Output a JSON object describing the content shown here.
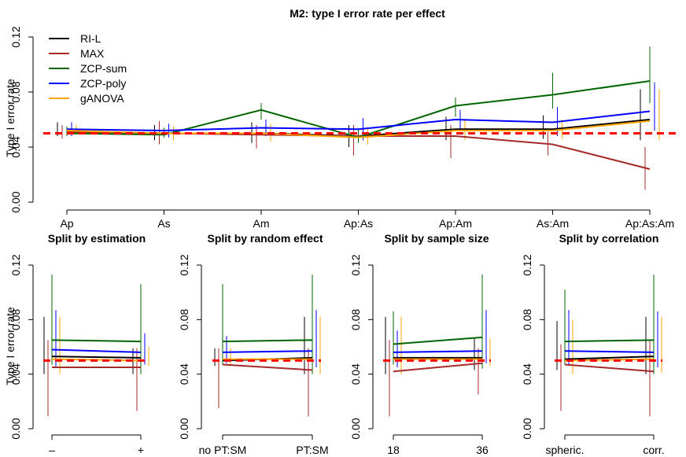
{
  "colors": {
    "RI-L": "#000000",
    "MAX": "#a52a2a",
    "ZCP-sum": "#006400",
    "ZCP-poly": "#0000ff",
    "gANOVA": "#ffa500",
    "reference": "#ff0000"
  },
  "reference_line": 0.05,
  "chart_data": [
    {
      "type": "line",
      "title": "M2: type I error rate per effect",
      "ylabel": "Type I error rate",
      "xlabel": "",
      "ylim": [
        0,
        0.12
      ],
      "yticks": [
        "0.00",
        "0.04",
        "0.08",
        "0.12"
      ],
      "categories": [
        "Ap",
        "As",
        "Am",
        "Ap:As",
        "Ap:Am",
        "As:Am",
        "Ap:As:Am"
      ],
      "legend": "top-left",
      "series": [
        {
          "name": "RI-L",
          "values": [
            0.051,
            0.05,
            0.05,
            0.048,
            0.053,
            0.053,
            0.06
          ],
          "low": [
            0.048,
            0.045,
            0.043,
            0.04,
            0.045,
            0.046,
            0.045
          ],
          "high": [
            0.058,
            0.056,
            0.058,
            0.056,
            0.062,
            0.063,
            0.082
          ]
        },
        {
          "name": "MAX",
          "values": [
            0.051,
            0.05,
            0.049,
            0.048,
            0.048,
            0.042,
            0.024
          ],
          "low": [
            0.046,
            0.042,
            0.039,
            0.034,
            0.032,
            0.034,
            0.009
          ],
          "high": [
            0.056,
            0.059,
            0.056,
            0.056,
            0.056,
            0.051,
            0.04
          ]
        },
        {
          "name": "ZCP-sum",
          "values": [
            0.05,
            0.049,
            0.067,
            0.047,
            0.07,
            0.078,
            0.088
          ],
          "low": [
            0.048,
            0.047,
            0.06,
            0.043,
            0.062,
            0.068,
            0.072
          ],
          "high": [
            0.055,
            0.054,
            0.072,
            0.053,
            0.076,
            0.094,
            0.113
          ]
        },
        {
          "name": "ZCP-poly",
          "values": [
            0.053,
            0.052,
            0.054,
            0.053,
            0.06,
            0.058,
            0.066
          ],
          "low": [
            0.048,
            0.047,
            0.048,
            0.045,
            0.052,
            0.048,
            0.052
          ],
          "high": [
            0.058,
            0.057,
            0.06,
            0.061,
            0.067,
            0.069,
            0.087
          ]
        },
        {
          "name": "gANOVA",
          "values": [
            0.052,
            0.05,
            0.05,
            0.047,
            0.052,
            0.052,
            0.059
          ],
          "low": [
            0.049,
            0.045,
            0.044,
            0.042,
            0.045,
            0.046,
            0.045
          ],
          "high": [
            0.056,
            0.055,
            0.057,
            0.053,
            0.06,
            0.06,
            0.082
          ]
        }
      ]
    },
    {
      "type": "line",
      "title": "Split by estimation",
      "ylabel": "Type I error rate",
      "ylim": [
        0,
        0.12
      ],
      "yticks": [
        "0.00",
        "0.04",
        "0.08",
        "0.12"
      ],
      "categories": [
        "–",
        "+"
      ],
      "series": [
        {
          "name": "RI-L",
          "values": [
            0.053,
            0.052
          ],
          "low": [
            0.04,
            0.04
          ],
          "high": [
            0.082,
            0.059
          ]
        },
        {
          "name": "MAX",
          "values": [
            0.045,
            0.045
          ],
          "low": [
            0.009,
            0.013
          ],
          "high": [
            0.065,
            0.059
          ]
        },
        {
          "name": "ZCP-sum",
          "values": [
            0.065,
            0.064
          ],
          "low": [
            0.047,
            0.04
          ],
          "high": [
            0.113,
            0.106
          ]
        },
        {
          "name": "ZCP-poly",
          "values": [
            0.058,
            0.056
          ],
          "low": [
            0.045,
            0.047
          ],
          "high": [
            0.087,
            0.07
          ]
        },
        {
          "name": "gANOVA",
          "values": [
            0.051,
            0.05
          ],
          "low": [
            0.04,
            0.046
          ],
          "high": [
            0.082,
            0.06
          ]
        }
      ]
    },
    {
      "type": "line",
      "title": "Split by random effect",
      "ylabel": "",
      "ylim": [
        0,
        0.12
      ],
      "yticks": [
        "0.00",
        "0.04",
        "0.08",
        "0.12"
      ],
      "categories": [
        "no PT:SM",
        "PT:SM"
      ],
      "series": [
        {
          "name": "RI-L",
          "values": [
            0.05,
            0.052
          ],
          "low": [
            0.046,
            0.04
          ],
          "high": [
            0.059,
            0.082
          ]
        },
        {
          "name": "MAX",
          "values": [
            0.047,
            0.043
          ],
          "low": [
            0.015,
            0.009
          ],
          "high": [
            0.059,
            0.059
          ]
        },
        {
          "name": "ZCP-sum",
          "values": [
            0.064,
            0.065
          ],
          "low": [
            0.047,
            0.04
          ],
          "high": [
            0.106,
            0.113
          ]
        },
        {
          "name": "ZCP-poly",
          "values": [
            0.056,
            0.057
          ],
          "low": [
            0.048,
            0.045
          ],
          "high": [
            0.068,
            0.087
          ]
        },
        {
          "name": "gANOVA",
          "values": [
            0.051,
            0.051
          ],
          "low": [
            0.046,
            0.04
          ],
          "high": [
            0.059,
            0.082
          ]
        }
      ]
    },
    {
      "type": "line",
      "title": "Split by sample size",
      "ylabel": "",
      "ylim": [
        0,
        0.12
      ],
      "yticks": [
        "0.00",
        "0.04",
        "0.08",
        "0.12"
      ],
      "categories": [
        "18",
        "36"
      ],
      "series": [
        {
          "name": "RI-L",
          "values": [
            0.052,
            0.052
          ],
          "low": [
            0.04,
            0.043
          ],
          "high": [
            0.082,
            0.066
          ]
        },
        {
          "name": "MAX",
          "values": [
            0.042,
            0.048
          ],
          "low": [
            0.009,
            0.025
          ],
          "high": [
            0.065,
            0.059
          ]
        },
        {
          "name": "ZCP-sum",
          "values": [
            0.062,
            0.067
          ],
          "low": [
            0.047,
            0.044
          ],
          "high": [
            0.086,
            0.113
          ]
        },
        {
          "name": "ZCP-poly",
          "values": [
            0.056,
            0.057
          ],
          "low": [
            0.045,
            0.048
          ],
          "high": [
            0.072,
            0.087
          ]
        },
        {
          "name": "gANOVA",
          "values": [
            0.051,
            0.051
          ],
          "low": [
            0.04,
            0.046
          ],
          "high": [
            0.082,
            0.066
          ]
        }
      ]
    },
    {
      "type": "line",
      "title": "Split by correlation",
      "ylabel": "",
      "ylim": [
        0,
        0.12
      ],
      "yticks": [
        "0.00",
        "0.04",
        "0.08",
        "0.12"
      ],
      "categories": [
        "spheric.",
        "corr."
      ],
      "series": [
        {
          "name": "RI-L",
          "values": [
            0.051,
            0.053
          ],
          "low": [
            0.043,
            0.04
          ],
          "high": [
            0.079,
            0.082
          ]
        },
        {
          "name": "MAX",
          "values": [
            0.047,
            0.042
          ],
          "low": [
            0.013,
            0.009
          ],
          "high": [
            0.062,
            0.065
          ]
        },
        {
          "name": "ZCP-sum",
          "values": [
            0.064,
            0.065
          ],
          "low": [
            0.047,
            0.04
          ],
          "high": [
            0.102,
            0.113
          ]
        },
        {
          "name": "ZCP-poly",
          "values": [
            0.057,
            0.056
          ],
          "low": [
            0.046,
            0.045
          ],
          "high": [
            0.087,
            0.086
          ]
        },
        {
          "name": "gANOVA",
          "values": [
            0.05,
            0.051
          ],
          "low": [
            0.04,
            0.041
          ],
          "high": [
            0.08,
            0.082
          ]
        }
      ]
    }
  ]
}
